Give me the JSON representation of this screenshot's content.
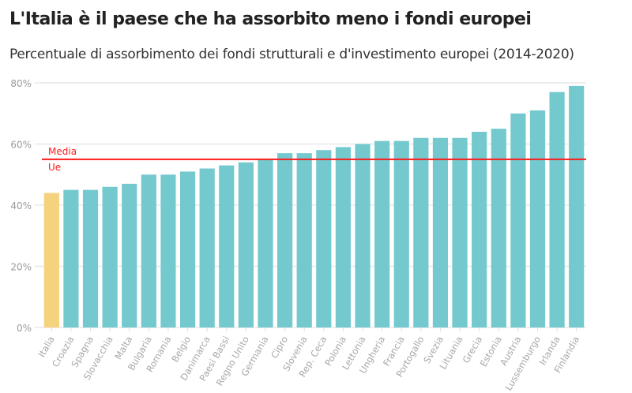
{
  "chart_data": {
    "type": "bar",
    "title": "L'Italia è il paese che ha assorbito meno i fondi europei",
    "subtitle": "Percentuale di assorbimento dei fondi strutturali e d'investimento europei (2014-2020)",
    "xlabel": "",
    "ylabel": "",
    "ylim": [
      0,
      80
    ],
    "yticks": [
      "0%",
      "20%",
      "40%",
      "60%",
      "80%"
    ],
    "ytick_values": [
      0,
      20,
      40,
      60,
      80
    ],
    "grid": true,
    "categories": [
      "Italia",
      "Croazia",
      "Spagna",
      "Slovacchia",
      "Malta",
      "Bulgaria",
      "Romania",
      "Belgio",
      "Danimarca",
      "Paesi Bassi",
      "Regno Unito",
      "Germania",
      "Cipro",
      "Slovenia",
      "Rep. Ceca",
      "Polonia",
      "Lettonia",
      "Ungheria",
      "Francia",
      "Portogallo",
      "Svezia",
      "Lituania",
      "Grecia",
      "Estonia",
      "Austria",
      "Lussemburgo",
      "Irlanda",
      "Finlandia"
    ],
    "values": [
      44,
      45,
      45,
      46,
      47,
      50,
      50,
      51,
      52,
      53,
      54,
      55,
      57,
      57,
      58,
      59,
      60,
      61,
      61,
      62,
      62,
      62,
      64,
      65,
      70,
      71,
      77,
      79
    ],
    "highlight_category": "Italia",
    "colors": {
      "bar": "#74c9cf",
      "highlight": "#f5d27e",
      "reference_line": "#ff1a1a",
      "grid": "#e8e8e8"
    },
    "reference_line": {
      "value": 55,
      "label_line1": "Media",
      "label_line2": "Ue"
    }
  }
}
